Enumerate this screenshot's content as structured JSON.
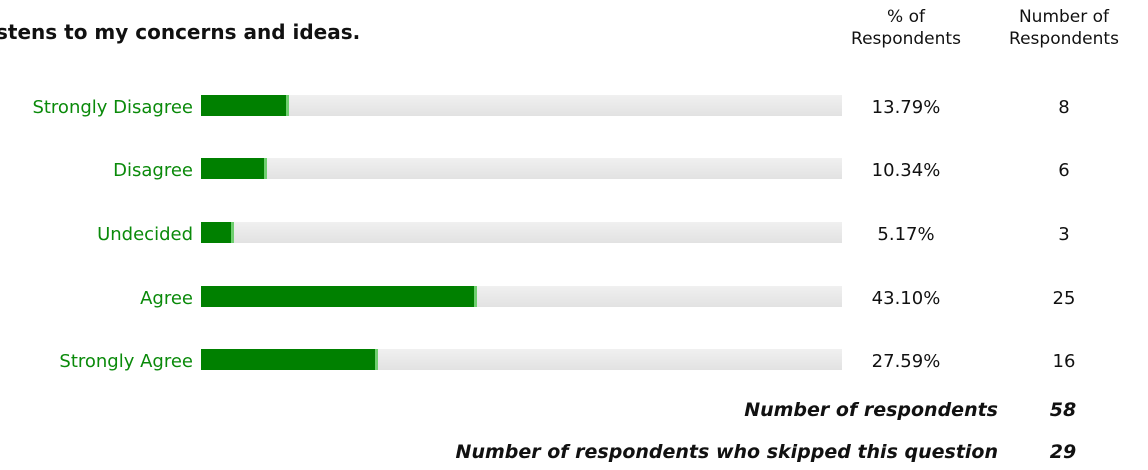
{
  "question": "stens to my concerns and ideas.",
  "headers": {
    "pct_line1": "% of",
    "pct_line2": "Respondents",
    "num_line1": "Number of",
    "num_line2": "Respondents"
  },
  "colors": {
    "bar_fill": "#008000",
    "bar_track": "#e8e8e8",
    "label_text": "#0a8a0a"
  },
  "chart_data": {
    "type": "bar",
    "orientation": "horizontal",
    "categories": [
      "Strongly Disagree",
      "Disagree",
      "Undecided",
      "Agree",
      "Strongly Agree"
    ],
    "values": [
      13.79,
      10.34,
      5.17,
      43.1,
      27.59
    ],
    "value_labels": [
      "13.79%",
      "10.34%",
      "5.17%",
      "43.10%",
      "27.59%"
    ],
    "counts": [
      8,
      6,
      3,
      25,
      16
    ],
    "xlim": [
      0,
      100
    ],
    "grid": false,
    "legend": "none"
  },
  "summary": {
    "respondents_label": "Number of respondents",
    "respondents_value": "58",
    "skipped_label": "Number of respondents who skipped this question",
    "skipped_value": "29"
  }
}
